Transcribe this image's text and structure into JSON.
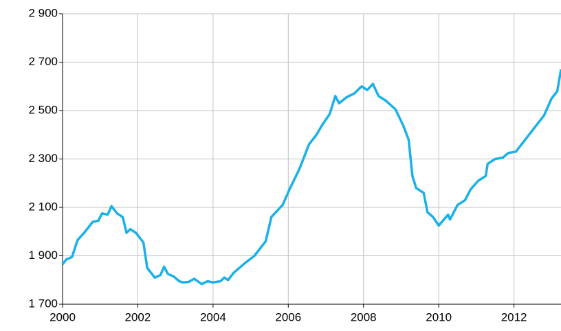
{
  "chart_data": {
    "type": "line",
    "x": [
      2000,
      2000.1,
      2000.25,
      2000.4,
      2000.6,
      2000.8,
      2000.95,
      2001.05,
      2001.2,
      2001.3,
      2001.45,
      2001.6,
      2001.7,
      2001.8,
      2001.95,
      2002.15,
      2002.25,
      2002.45,
      2002.6,
      2002.7,
      2002.8,
      2002.95,
      2003.1,
      2003.2,
      2003.35,
      2003.5,
      2003.7,
      2003.85,
      2004,
      2004.2,
      2004.3,
      2004.4,
      2004.55,
      2004.85,
      2005.1,
      2005.4,
      2005.55,
      2005.85,
      2006.05,
      2006.3,
      2006.55,
      2006.75,
      2006.9,
      2007.1,
      2007.25,
      2007.35,
      2007.55,
      2007.75,
      2007.95,
      2008.1,
      2008.25,
      2008.4,
      2008.6,
      2008.85,
      2009.05,
      2009.2,
      2009.3,
      2009.4,
      2009.6,
      2009.7,
      2009.85,
      2010,
      2010.25,
      2010.3,
      2010.5,
      2010.7,
      2010.85,
      2011.05,
      2011.25,
      2011.3,
      2011.5,
      2011.7,
      2011.85,
      2012.05,
      2012.25,
      2012.5,
      2012.8,
      2013,
      2013.15,
      2013.25
    ],
    "series": [
      {
        "color": "#1ab0e8",
        "values": [
          1865,
          1885,
          1895,
          1965,
          2000,
          2040,
          2045,
          2075,
          2070,
          2105,
          2075,
          2060,
          1995,
          2010,
          1995,
          1955,
          1850,
          1810,
          1820,
          1855,
          1825,
          1815,
          1795,
          1790,
          1792,
          1805,
          1783,
          1795,
          1790,
          1795,
          1810,
          1800,
          1830,
          1870,
          1900,
          1960,
          2060,
          2110,
          2180,
          2260,
          2360,
          2400,
          2440,
          2485,
          2560,
          2530,
          2555,
          2570,
          2600,
          2585,
          2610,
          2560,
          2540,
          2505,
          2440,
          2380,
          2230,
          2180,
          2160,
          2080,
          2060,
          2025,
          2070,
          2050,
          2110,
          2130,
          2175,
          2210,
          2230,
          2280,
          2300,
          2305,
          2325,
          2330,
          2370,
          2420,
          2480,
          2550,
          2580,
          2670
        ]
      }
    ],
    "xlim": [
      2000,
      2013.25
    ],
    "xticks": [
      2000,
      2002,
      2004,
      2006,
      2008,
      2010,
      2012
    ],
    "ylim": [
      1700,
      2900
    ],
    "yticks": [
      {
        "value": 1700,
        "label": "1 700"
      },
      {
        "value": 1900,
        "label": "1 900"
      },
      {
        "value": 2100,
        "label": "2 100"
      },
      {
        "value": 2300,
        "label": "2 300"
      },
      {
        "value": 2500,
        "label": "2 500"
      },
      {
        "value": 2700,
        "label": "2 700"
      },
      {
        "value": 2900,
        "label": "2 900"
      }
    ],
    "grid": true
  }
}
